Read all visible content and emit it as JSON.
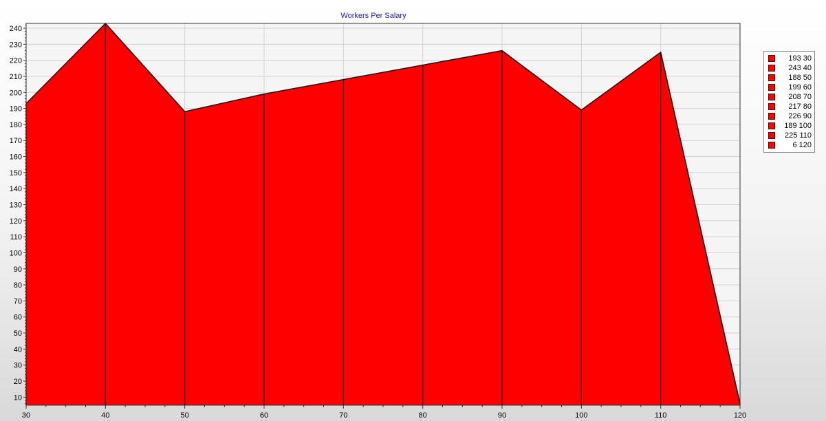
{
  "chart_data": {
    "type": "area",
    "title": "Workers Per Salary",
    "xlabel": "",
    "ylabel": "",
    "x": [
      30,
      40,
      50,
      60,
      70,
      80,
      90,
      100,
      110,
      120
    ],
    "series": [
      {
        "values": [
          193,
          243,
          188,
          199,
          208,
          217,
          226,
          189,
          225,
          6
        ]
      }
    ],
    "xlim": [
      30,
      120
    ],
    "ylim": [
      5,
      243
    ],
    "xticks": [
      30,
      40,
      50,
      60,
      70,
      80,
      90,
      100,
      110,
      120
    ],
    "yticks": [
      10,
      20,
      30,
      40,
      50,
      60,
      70,
      80,
      90,
      100,
      110,
      120,
      130,
      140,
      150,
      160,
      170,
      180,
      190,
      200,
      210,
      220,
      230,
      240
    ],
    "grid": true,
    "fill_color": "#ff0000",
    "legend_position": "right",
    "legend": [
      "193 30",
      "243 40",
      "188 50",
      "199 60",
      "208 70",
      "217 80",
      "226 90",
      "189 100",
      "225 110",
      "6 120"
    ]
  }
}
